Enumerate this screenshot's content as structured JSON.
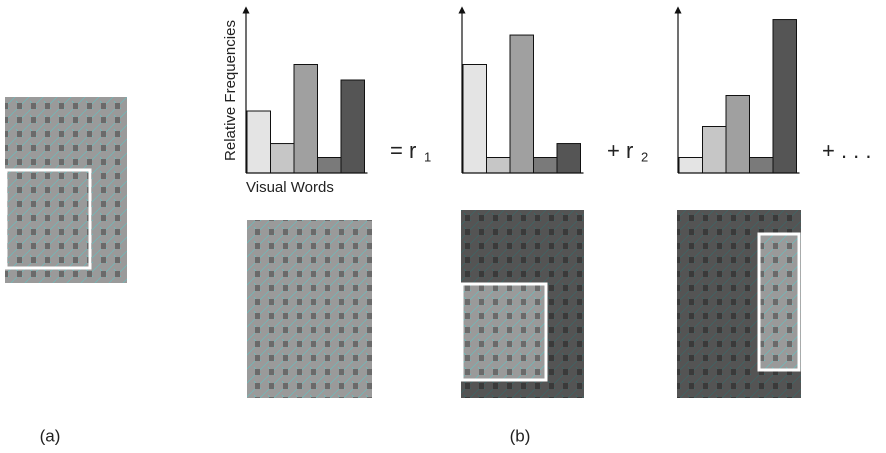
{
  "chart_data": [
    {
      "type": "bar",
      "y_label": "Relative Frequencies",
      "x_label": "Visual Words",
      "categories": [
        null,
        null,
        null,
        null,
        null
      ],
      "values": [
        40,
        19,
        70,
        10,
        60
      ],
      "colors": [
        "#e4e4e4",
        "#c6c6c6",
        "#a0a0a0",
        "#7a7a7a",
        "#555555"
      ],
      "ylim": [
        0,
        100
      ]
    },
    {
      "type": "bar",
      "categories": [
        null,
        null,
        null,
        null,
        null
      ],
      "values": [
        70,
        10,
        89,
        10,
        19
      ],
      "colors": [
        "#e4e4e4",
        "#c6c6c6",
        "#a0a0a0",
        "#7a7a7a",
        "#555555"
      ],
      "ylim": [
        0,
        100
      ]
    },
    {
      "type": "bar",
      "categories": [
        null,
        null,
        null,
        null,
        null
      ],
      "values": [
        10,
        30,
        50,
        10,
        99
      ],
      "colors": [
        "#e4e4e4",
        "#c6c6c6",
        "#a0a0a0",
        "#7a7a7a",
        "#555555"
      ],
      "ylim": [
        0,
        100
      ]
    }
  ],
  "equation": {
    "equals": "= r",
    "sub1": "1",
    "plus1": "+ r",
    "sub2": "2",
    "plus_more": "+ . . ."
  },
  "captions": {
    "a": "(a)",
    "b": "(b)"
  }
}
